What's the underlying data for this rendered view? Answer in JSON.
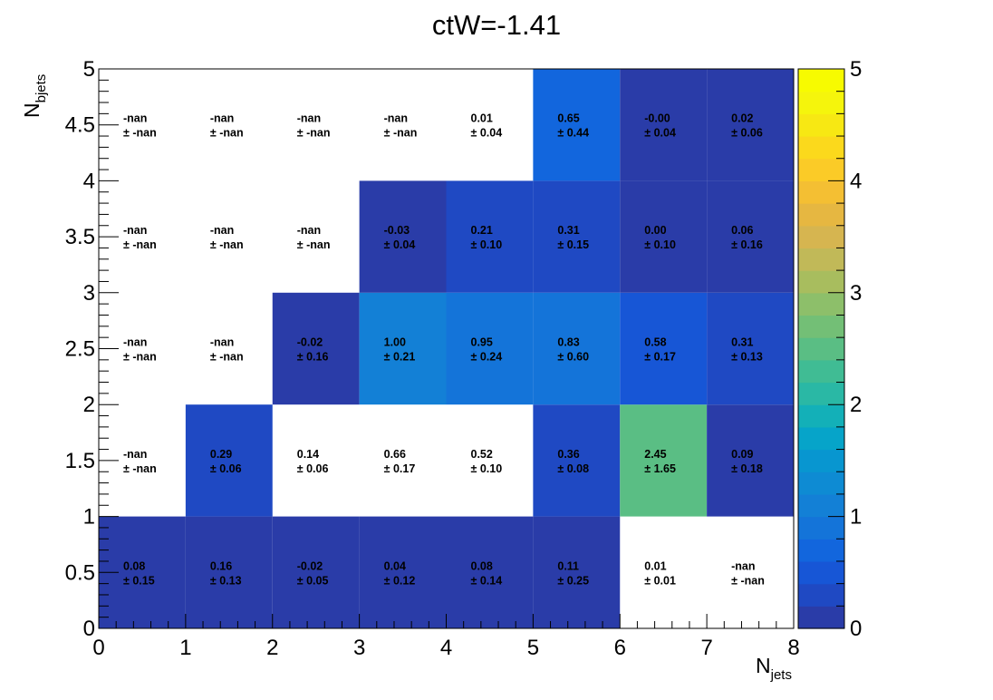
{
  "chart_data": {
    "type": "heatmap",
    "title": "ctW=-1.41",
    "xlabel": "N",
    "xlabel_sub": "jets",
    "ylabel": "N",
    "ylabel_sub": "bjets",
    "xlim": [
      0,
      8
    ],
    "ylim": [
      0,
      5
    ],
    "zlim": [
      0,
      5
    ],
    "x_ticks": [
      "0",
      "1",
      "2",
      "3",
      "4",
      "5",
      "6",
      "7",
      "8"
    ],
    "y_ticks": [
      "0",
      "0.5",
      "1",
      "1.5",
      "2",
      "2.5",
      "3",
      "3.5",
      "4",
      "4.5",
      "5"
    ],
    "z_ticks": [
      "0",
      "1",
      "2",
      "3",
      "4",
      "5"
    ],
    "x_bins": [
      0,
      1,
      2,
      3,
      4,
      5,
      6,
      7,
      8
    ],
    "y_bins": [
      0,
      1,
      2,
      3,
      4,
      5
    ],
    "cells": [
      {
        "x": 0,
        "y": 0,
        "value": 0.08,
        "label": "0.08",
        "error": "± 0.15"
      },
      {
        "x": 1,
        "y": 0,
        "value": 0.16,
        "label": "0.16",
        "error": "± 0.13"
      },
      {
        "x": 2,
        "y": 0,
        "value": -0.02,
        "label": "-0.02",
        "error": "± 0.05"
      },
      {
        "x": 3,
        "y": 0,
        "value": 0.04,
        "label": "0.04",
        "error": "± 0.12"
      },
      {
        "x": 4,
        "y": 0,
        "value": 0.08,
        "label": "0.08",
        "error": "± 0.14"
      },
      {
        "x": 5,
        "y": 0,
        "value": 0.11,
        "label": "0.11",
        "error": "± 0.25"
      },
      {
        "x": 6,
        "y": 0,
        "value": 0.01,
        "label": "0.01",
        "error": "± 0.01",
        "unfilled": true
      },
      {
        "x": 7,
        "y": 0,
        "value": null,
        "label": "-nan",
        "error": "± -nan"
      },
      {
        "x": 0,
        "y": 1,
        "value": null,
        "label": "-nan",
        "error": "± -nan"
      },
      {
        "x": 1,
        "y": 1,
        "value": 0.29,
        "label": "0.29",
        "error": "± 0.06"
      },
      {
        "x": 2,
        "y": 1,
        "value": 0.14,
        "label": "0.14",
        "error": "± 0.06",
        "unfilled": true
      },
      {
        "x": 3,
        "y": 1,
        "value": 0.66,
        "label": "0.66",
        "error": "± 0.17",
        "unfilled": true
      },
      {
        "x": 4,
        "y": 1,
        "value": 0.52,
        "label": "0.52",
        "error": "± 0.10",
        "unfilled": true
      },
      {
        "x": 5,
        "y": 1,
        "value": 0.36,
        "label": "0.36",
        "error": "± 0.08"
      },
      {
        "x": 6,
        "y": 1,
        "value": 2.45,
        "label": "2.45",
        "error": "± 1.65"
      },
      {
        "x": 7,
        "y": 1,
        "value": 0.09,
        "label": "0.09",
        "error": "± 0.18"
      },
      {
        "x": 0,
        "y": 2,
        "value": null,
        "label": "-nan",
        "error": "± -nan"
      },
      {
        "x": 1,
        "y": 2,
        "value": null,
        "label": "-nan",
        "error": "± -nan"
      },
      {
        "x": 2,
        "y": 2,
        "value": -0.02,
        "label": "-0.02",
        "error": "± 0.16"
      },
      {
        "x": 3,
        "y": 2,
        "value": 1.0,
        "label": "1.00",
        "error": "± 0.21"
      },
      {
        "x": 4,
        "y": 2,
        "value": 0.95,
        "label": "0.95",
        "error": "± 0.24"
      },
      {
        "x": 5,
        "y": 2,
        "value": 0.83,
        "label": "0.83",
        "error": "± 0.60"
      },
      {
        "x": 6,
        "y": 2,
        "value": 0.58,
        "label": "0.58",
        "error": "± 0.17"
      },
      {
        "x": 7,
        "y": 2,
        "value": 0.31,
        "label": "0.31",
        "error": "± 0.13"
      },
      {
        "x": 0,
        "y": 3,
        "value": null,
        "label": "-nan",
        "error": "± -nan"
      },
      {
        "x": 1,
        "y": 3,
        "value": null,
        "label": "-nan",
        "error": "± -nan"
      },
      {
        "x": 2,
        "y": 3,
        "value": null,
        "label": "-nan",
        "error": "± -nan"
      },
      {
        "x": 3,
        "y": 3,
        "value": -0.03,
        "label": "-0.03",
        "error": "± 0.04"
      },
      {
        "x": 4,
        "y": 3,
        "value": 0.21,
        "label": "0.21",
        "error": "± 0.10"
      },
      {
        "x": 5,
        "y": 3,
        "value": 0.31,
        "label": "0.31",
        "error": "± 0.15"
      },
      {
        "x": 6,
        "y": 3,
        "value": 0.0,
        "label": "0.00",
        "error": "± 0.10"
      },
      {
        "x": 7,
        "y": 3,
        "value": 0.06,
        "label": "0.06",
        "error": "± 0.16"
      },
      {
        "x": 0,
        "y": 4,
        "value": null,
        "label": "-nan",
        "error": "± -nan"
      },
      {
        "x": 1,
        "y": 4,
        "value": null,
        "label": "-nan",
        "error": "± -nan"
      },
      {
        "x": 2,
        "y": 4,
        "value": null,
        "label": "-nan",
        "error": "± -nan"
      },
      {
        "x": 3,
        "y": 4,
        "value": null,
        "label": "-nan",
        "error": "± -nan"
      },
      {
        "x": 4,
        "y": 4,
        "value": 0.01,
        "label": "0.01",
        "error": "± 0.04",
        "unfilled": true
      },
      {
        "x": 5,
        "y": 4,
        "value": 0.65,
        "label": "0.65",
        "error": "± 0.44"
      },
      {
        "x": 6,
        "y": 4,
        "value": -0.0,
        "label": "-0.00",
        "error": "± 0.04"
      },
      {
        "x": 7,
        "y": 4,
        "value": 0.02,
        "label": "0.02",
        "error": "± 0.06"
      }
    ],
    "palette": [
      "#2a3ca8",
      "#1f49c3",
      "#1756d6",
      "#1266dd",
      "#1474d9",
      "#1380d6",
      "#0e8bd3",
      "#0896d0",
      "#06a4c9",
      "#13b0b8",
      "#2ab8a5",
      "#40bc94",
      "#5abe84",
      "#73bf76",
      "#8dbf6a",
      "#a8bd5e",
      "#c1b958",
      "#d6b550",
      "#e6b741",
      "#f4bf33",
      "#fbcb27",
      "#fbd91c",
      "#f7e813",
      "#f5f50c",
      "#f7fb00"
    ]
  }
}
